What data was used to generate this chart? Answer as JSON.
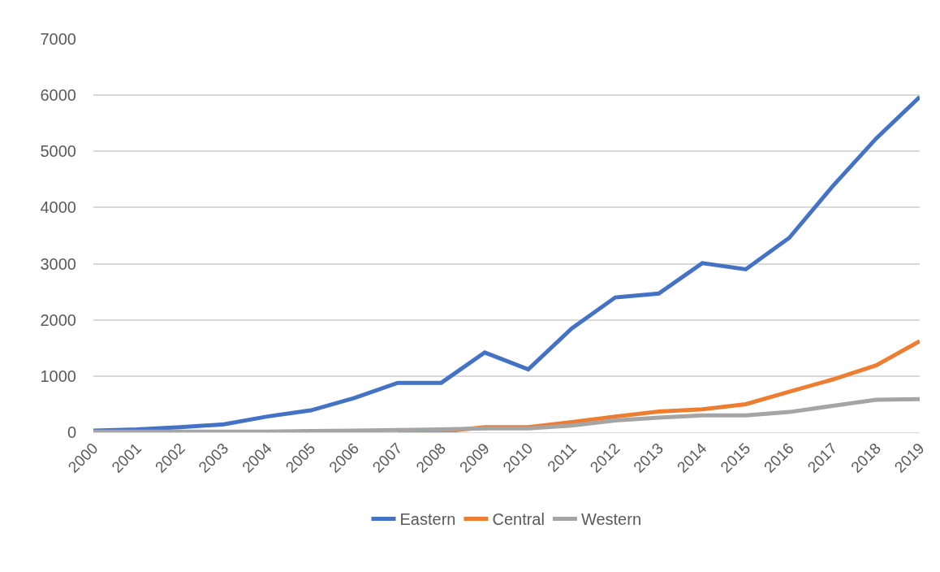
{
  "chart_data": {
    "type": "line",
    "categories": [
      "2000",
      "2001",
      "2002",
      "2003",
      "2004",
      "2005",
      "2006",
      "2007",
      "2008",
      "2009",
      "2010",
      "2011",
      "2012",
      "2013",
      "2014",
      "2015",
      "2016",
      "2017",
      "2018",
      "2019"
    ],
    "series": [
      {
        "name": "Eastern",
        "color": "#4472c4",
        "values": [
          30,
          50,
          90,
          140,
          280,
          390,
          610,
          880,
          880,
          1420,
          1120,
          1850,
          2400,
          2470,
          3010,
          2900,
          3460,
          4380,
          5230,
          5970
        ]
      },
      {
        "name": "Central",
        "color": "#ed7d31",
        "values": [
          null,
          null,
          null,
          null,
          null,
          null,
          null,
          10,
          10,
          90,
          90,
          180,
          280,
          370,
          410,
          500,
          720,
          940,
          1190,
          1620
        ]
      },
      {
        "name": "Western",
        "color": "#a5a5a5",
        "values": [
          10,
          10,
          10,
          10,
          10,
          20,
          30,
          40,
          50,
          70,
          70,
          120,
          210,
          260,
          300,
          300,
          360,
          470,
          580,
          590
        ]
      }
    ],
    "ylim": [
      0,
      7000
    ],
    "yticks": [
      0,
      1000,
      2000,
      3000,
      4000,
      5000,
      6000,
      7000
    ],
    "grid": "y",
    "legend": "bottom",
    "marker": "none",
    "line_style": "solid"
  }
}
